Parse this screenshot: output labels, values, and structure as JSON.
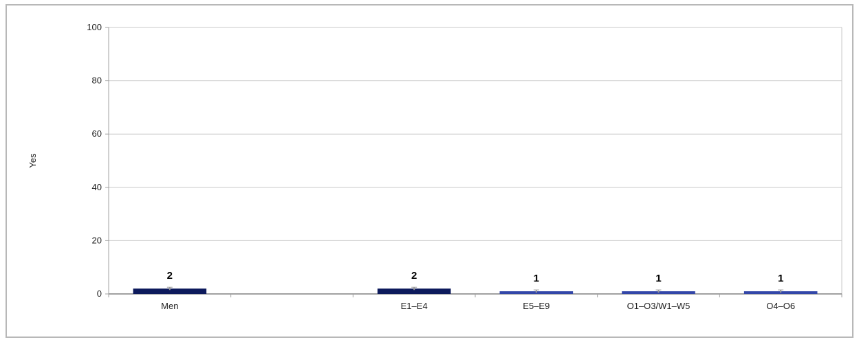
{
  "chart_data": {
    "type": "bar",
    "title": "",
    "xlabel": "",
    "ylabel": "Yes",
    "ylim": [
      0,
      100
    ],
    "yticks": [
      0,
      20,
      40,
      60,
      80,
      100
    ],
    "grid": true,
    "categories": [
      "Men",
      "",
      "E1–E4",
      "E5–E9",
      "O1–O3/W1–W5",
      "O4–O6"
    ],
    "values": [
      2,
      null,
      2,
      1,
      1,
      1
    ],
    "data_labels": [
      "2",
      "",
      "2",
      "1",
      "1",
      "1"
    ],
    "bar_colors": [
      "#0d1a5c",
      null,
      "#0d1a5c",
      "#3346a8",
      "#3346a8",
      "#3346a8"
    ]
  },
  "colors": {
    "grid": "#c8c8c8",
    "axis": "#a0a0a0",
    "frame": "#b8b8b8",
    "error_bar": "#9a9a9a"
  }
}
